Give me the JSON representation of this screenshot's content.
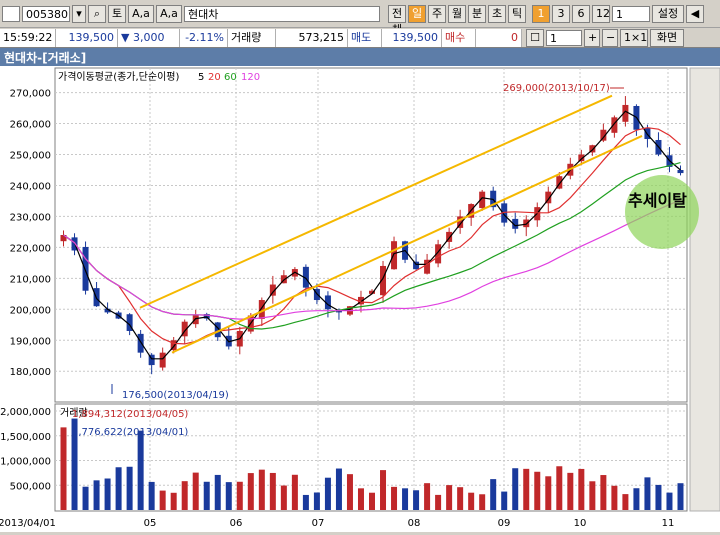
{
  "toolbar1": {
    "code": "005380",
    "code_btn": "▾",
    "tool1": "토",
    "tool2": "A,a",
    "tool3": "A,a",
    "stock_name": "현대차",
    "period_buttons": [
      "전체",
      "일",
      "주",
      "월",
      "분",
      "초",
      "틱"
    ],
    "active_period": "일",
    "interval_buttons": [
      "1",
      "3",
      "6",
      "12"
    ],
    "active_interval": "1",
    "interval_value": "1",
    "settings_label": "설정"
  },
  "toolbar2": {
    "time": "15:59:22",
    "price": "139,500",
    "change": "▼ 3,000",
    "change_pct": "-2.11%",
    "volume_label": "거래량",
    "volume": "573,215",
    "sell_label": "매도",
    "sell_price": "139,500",
    "buy_label": "매수",
    "buy_value": "0",
    "count": "1",
    "ratio": "1×1",
    "screen_label": "화면"
  },
  "title": "현대차-[거래소]",
  "colors": {
    "up": "#c0282a",
    "down": "#1a3a9c",
    "ma5": "#000000",
    "ma20": "#e03030",
    "ma60": "#20a020",
    "ma120": "#e040e0",
    "channel": "#f5b800"
  },
  "chart_data": [
    {
      "type": "line",
      "title": "가격이동평균(종가,단순이평)",
      "legend": [
        "5",
        "20",
        "60",
        "120"
      ],
      "ylim": [
        172000,
        276000
      ],
      "y_ticks": [
        "270,000",
        "260,000",
        "250,000",
        "240,000",
        "230,000",
        "220,000",
        "210,000",
        "200,000",
        "190,000",
        "180,000"
      ],
      "y_values": [
        270000,
        260000,
        250000,
        240000,
        230000,
        220000,
        210000,
        200000,
        190000,
        180000
      ],
      "x_labels": [
        "2013/04/01",
        "05",
        "06",
        "07",
        "08",
        "09",
        "10",
        "11"
      ],
      "high_annotation": "269,000(2013/10/17)",
      "low_annotation": "176,500(2013/04/19)",
      "trend_label": "추세이탈",
      "close_series": [
        224000,
        219000,
        206000,
        201000,
        199000,
        197000,
        193000,
        186000,
        182000,
        186000,
        190000,
        196000,
        198000,
        197000,
        191000,
        188000,
        193000,
        198000,
        203000,
        208000,
        211000,
        213000,
        207000,
        203000,
        200000,
        199000,
        201000,
        204000,
        206000,
        214000,
        222000,
        216000,
        213000,
        216000,
        221000,
        225000,
        230000,
        234000,
        238000,
        233000,
        228000,
        226000,
        229000,
        233000,
        238000,
        243000,
        247000,
        250000,
        253000,
        258000,
        262000,
        266000,
        258000,
        255000,
        250000,
        246000,
        244000
      ]
    },
    {
      "type": "bar",
      "title": "거래량",
      "ylim": [
        0,
        2000000
      ],
      "y_ticks": [
        "2,000,000",
        "1,500,000",
        "1,000,000",
        "500,000"
      ],
      "y_values": [
        2000000,
        1500000,
        1000000,
        500000
      ],
      "max_annotation": "1,894,312(2013/04/05)",
      "second_annotation": "1,776,622(2013/04/01)"
    }
  ]
}
